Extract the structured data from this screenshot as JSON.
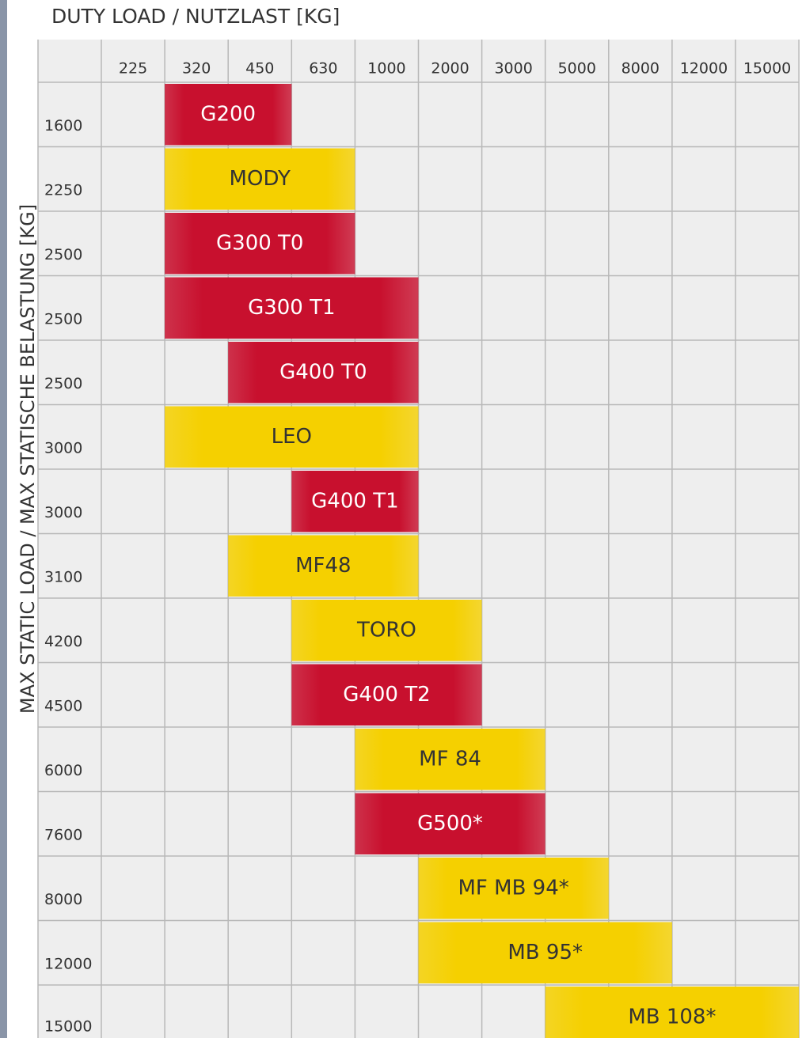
{
  "header": {
    "title": "DUTY LOAD / NUTZLAST [KG]",
    "y_label": "MAX STATIC LOAD / MAX STATISCHE BELASTUNG  [KG]"
  },
  "columns": [
    225,
    320,
    450,
    630,
    1000,
    2000,
    3000,
    5000,
    8000,
    12000,
    15000
  ],
  "rows": [
    {
      "name": "G200",
      "static_load": 1600,
      "from": 320,
      "to": 450,
      "color": "#c8102e"
    },
    {
      "name": "MODY",
      "static_load": 2250,
      "from": 320,
      "to": 630,
      "color": "#f5d000"
    },
    {
      "name": "G300 T0",
      "static_load": 2500,
      "from": 320,
      "to": 630,
      "color": "#c8102e"
    },
    {
      "name": "G300 T1",
      "static_load": 2500,
      "from": 320,
      "to": 1000,
      "color": "#c8102e"
    },
    {
      "name": "G400 T0",
      "static_load": 2500,
      "from": 450,
      "to": 1000,
      "color": "#c8102e"
    },
    {
      "name": "LEO",
      "static_load": 3000,
      "from": 320,
      "to": 1000,
      "color": "#f5d000"
    },
    {
      "name": "G400 T1",
      "static_load": 3000,
      "from": 630,
      "to": 1000,
      "color": "#c8102e"
    },
    {
      "name": "MF48",
      "static_load": 3100,
      "from": 450,
      "to": 1000,
      "color": "#f5d000"
    },
    {
      "name": "TORO",
      "static_load": 4200,
      "from": 630,
      "to": 2000,
      "color": "#f5d000"
    },
    {
      "name": "G400 T2",
      "static_load": 4500,
      "from": 630,
      "to": 2000,
      "color": "#c8102e"
    },
    {
      "name": "MF 84",
      "static_load": 6000,
      "from": 1000,
      "to": 3000,
      "color": "#f5d000"
    },
    {
      "name": "G500*",
      "static_load": 7600,
      "from": 1000,
      "to": 3000,
      "color": "#c8102e"
    },
    {
      "name": "MF MB 94*",
      "static_load": 8000,
      "from": 2000,
      "to": 5000,
      "color": "#f5d000"
    },
    {
      "name": "MB 95*",
      "static_load": 12000,
      "from": 2000,
      "to": 8000,
      "color": "#f5d000"
    },
    {
      "name": "MB 108*",
      "static_load": 15000,
      "from": 5000,
      "to": 15000,
      "color": "#f5d000"
    }
  ]
}
